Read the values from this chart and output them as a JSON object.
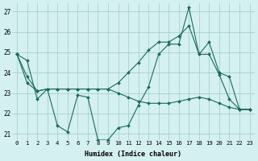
{
  "xlabel": "Humidex (Indice chaleur)",
  "x": [
    0,
    1,
    2,
    3,
    4,
    5,
    6,
    7,
    8,
    9,
    10,
    11,
    12,
    13,
    14,
    15,
    16,
    17,
    18,
    19,
    20,
    21,
    22,
    23
  ],
  "series": [
    [
      24.9,
      24.6,
      22.7,
      23.2,
      21.4,
      21.1,
      22.9,
      22.8,
      20.7,
      20.7,
      21.3,
      21.4,
      22.4,
      23.3,
      24.9,
      25.4,
      25.4,
      27.2,
      24.9,
      24.9,
      23.9,
      22.7,
      22.2,
      22.2
    ],
    [
      24.9,
      23.5,
      23.1,
      23.2,
      23.2,
      23.2,
      23.2,
      23.2,
      23.2,
      23.2,
      23.5,
      24.0,
      24.5,
      25.1,
      25.5,
      25.5,
      25.8,
      26.3,
      24.9,
      25.5,
      24.0,
      23.8,
      22.2,
      22.2
    ],
    [
      24.9,
      23.8,
      23.1,
      23.2,
      23.2,
      23.2,
      23.2,
      23.2,
      23.2,
      23.2,
      23.0,
      22.8,
      22.6,
      22.5,
      22.5,
      22.5,
      22.6,
      22.7,
      22.8,
      22.7,
      22.5,
      22.3,
      22.2,
      22.2
    ]
  ],
  "line_color": "#1a6b5a",
  "bg_color": "#d4f0f0",
  "grid_color": "#a0c8c8",
  "ylim_min": 20.7,
  "ylim_max": 27.4,
  "yticks": [
    21,
    22,
    23,
    24,
    25,
    26,
    27
  ],
  "xticks": [
    0,
    1,
    2,
    3,
    4,
    5,
    6,
    7,
    8,
    9,
    10,
    11,
    12,
    13,
    14,
    15,
    16,
    17,
    18,
    19,
    20,
    21,
    22,
    23
  ]
}
